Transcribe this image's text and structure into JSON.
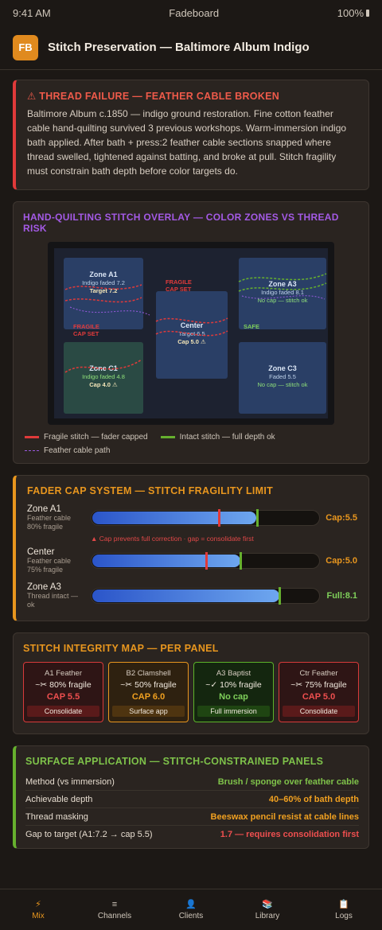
{
  "status": {
    "time": "9:41 AM",
    "app": "Fadeboard",
    "battery": "100%"
  },
  "header": {
    "logo": "FB",
    "title": "Stitch Preservation — Baltimore Album Indigo"
  },
  "alert": {
    "title": "⚠ THREAD FAILURE — FEATHER CABLE BROKEN",
    "body": "Baltimore Album c.1850 — indigo ground restoration. Fine cotton feather cable hand-quilting survived 3 previous workshops. Warm-immersion indigo bath applied. After bath + press:2 feather cable sections snapped where thread swelled, tightened against batting, and broke at pull. Stitch fragility must constrain bath depth before color targets do."
  },
  "overlay": {
    "title": "HAND-QUILTING STITCH OVERLAY — COLOR ZONES VS THREAD RISK",
    "zones": {
      "a1": {
        "name": "Zone A1",
        "line1": "Indigo faded 7.2",
        "line2": "Target 7.2"
      },
      "center": {
        "name": "Center",
        "line1": "Target 6.5",
        "line2": "Cap 5.0 ⚠"
      },
      "a3": {
        "name": "Zone A3",
        "line1": "Indigo faded 8.1",
        "line2": "No cap — stitch ok"
      },
      "c1": {
        "name": "Zone C1",
        "line1": "Indigo faded 4.8",
        "line2": "Cap 4.0 ⚠"
      },
      "c3": {
        "name": "Zone C3",
        "line1": "Faded 5.5",
        "line2": "No cap — stitch ok"
      }
    },
    "labels": {
      "fragile1_a": "FRAGILE",
      "fragile1_b": "CAP SET",
      "fragile2_a": "FRAGILE",
      "fragile2_b": "CAP SET",
      "safe": "SAFE"
    },
    "legend": {
      "red": "Fragile stitch — fader capped",
      "green": "Intact stitch — full depth ok",
      "dash": "Feather cable path"
    }
  },
  "fader": {
    "title": "FADER CAP SYSTEM — STITCH FRAGILITY LIMIT",
    "rows": [
      {
        "name": "Zone A1",
        "sub1": "Feather cable",
        "sub2": "80% fragile",
        "value": "Cap:5.5",
        "fill": 0.72,
        "cap": 0.555,
        "full": 0.725
      },
      {
        "name": "Center",
        "sub1": "Feather cable",
        "sub2": "75% fragile",
        "value": "Cap:5.0",
        "fill": 0.65,
        "cap": 0.5,
        "full": 0.65
      },
      {
        "name": "Zone A3",
        "sub1": "Thread intact —",
        "sub2": "ok",
        "value": "Full:8.1",
        "fill": 0.82,
        "cap": null,
        "full": 0.82
      }
    ],
    "note": "▲ Cap prevents full correction · gap = consolidate first"
  },
  "integrity": {
    "title": "STITCH INTEGRITY MAP — PER PANEL",
    "panels": [
      {
        "name": "A1 Feather",
        "frag": "~✂ 80% fragile",
        "cap": "CAP 5.5",
        "badge": "Consolidate"
      },
      {
        "name": "B2 Clamshell",
        "frag": "~✂ 50% fragile",
        "cap": "CAP 6.0",
        "badge": "Surface app"
      },
      {
        "name": "A3 Baptist",
        "frag": "~✓ 10% fragile",
        "cap": "No cap",
        "badge": "Full immersion"
      },
      {
        "name": "Ctr Feather",
        "frag": "~✂ 75% fragile",
        "cap": "CAP 5.0",
        "badge": "Consolidate"
      }
    ]
  },
  "surface": {
    "title": "SURFACE APPLICATION — STITCH-CONSTRAINED PANELS",
    "rows": [
      {
        "k": "Method (vs immersion)",
        "v": "Brush / sponge over feather cable"
      },
      {
        "k": "Achievable depth",
        "v": "40–60% of bath depth"
      },
      {
        "k": "Thread masking",
        "v": "Beeswax pencil resist at cable lines"
      },
      {
        "k": "Gap to target (A1:7.2 → cap 5.5)",
        "v": "1.7 — requires consolidation first"
      }
    ]
  },
  "tabs": [
    {
      "icon": "⚡",
      "label": "Mix"
    },
    {
      "icon": "≡",
      "label": "Channels"
    },
    {
      "icon": "👤",
      "label": "Clients"
    },
    {
      "icon": "📚",
      "label": "Library"
    },
    {
      "icon": "📋",
      "label": "Logs"
    }
  ],
  "colors": {
    "accent": "#e8961e",
    "danger": "#e03a3a",
    "safe": "#66b02e",
    "cable": "#9a5ae0"
  }
}
